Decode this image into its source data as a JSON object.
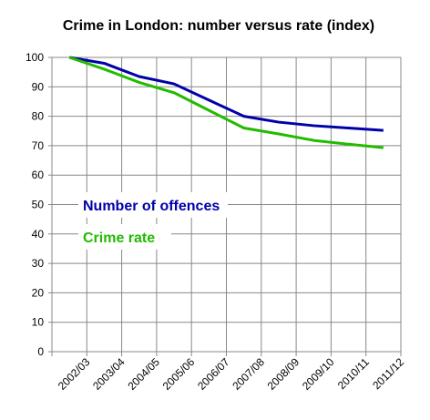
{
  "chart_data": {
    "type": "line",
    "title": "Crime in London: number versus rate (index)",
    "xlabel": "",
    "ylabel": "",
    "ylim": [
      0,
      100
    ],
    "yticks": [
      0,
      10,
      20,
      30,
      40,
      50,
      60,
      70,
      80,
      90,
      100
    ],
    "grid": true,
    "categories": [
      "2002/03",
      "2003/04",
      "2004/05",
      "2005/06",
      "2006/07",
      "2007/08",
      "2008/09",
      "2009/10",
      "2010/11",
      "2011/12"
    ],
    "series": [
      {
        "name": "Number of offences",
        "color": "#0000aa",
        "values": [
          100,
          98,
          93.5,
          91,
          85.5,
          80,
          78,
          76.8,
          76,
          75.2
        ]
      },
      {
        "name": "Crime rate",
        "color": "#22bb00",
        "values": [
          100,
          96,
          91.5,
          88,
          82,
          76,
          74,
          71.8,
          70.5,
          69.3
        ]
      }
    ],
    "legend": "inside-left"
  }
}
